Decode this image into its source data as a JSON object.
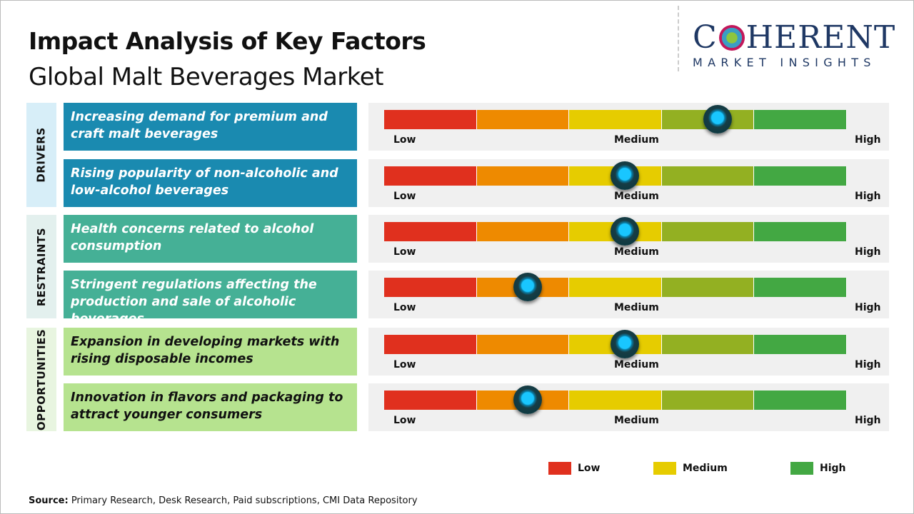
{
  "title": "Impact Analysis of Key Factors",
  "subtitle": "Global Malt Beverages Market",
  "logo": {
    "main": "COHERENT",
    "tagline": "MARKET INSIGHTS"
  },
  "chart_data": {
    "type": "gauge-table",
    "title": "Impact Analysis of Key Factors",
    "subtitle": "Global Malt Beverages Market",
    "scale_labels": {
      "low": "Low",
      "medium": "Medium",
      "high": "High"
    },
    "segment_colors": [
      "#e0301e",
      "#ee8a00",
      "#e6cc00",
      "#93b022",
      "#43a843"
    ],
    "categories": [
      {
        "name": "DRIVERS",
        "color": "#1a8ab0",
        "bg": "#d7eef8",
        "text_color": "#ffffff",
        "factors": [
          {
            "text": "Increasing demand for premium and craft malt beverages",
            "impact": 0.72
          },
          {
            "text": "Rising popularity of non-alcoholic and low-alcohol beverages",
            "impact": 0.52
          }
        ]
      },
      {
        "name": "RESTRAINTS",
        "color": "#45b096",
        "bg": "#e3f0ee",
        "text_color": "#ffffff",
        "factors": [
          {
            "text": "Health concerns related to alcohol consumption",
            "impact": 0.52
          },
          {
            "text": "Stringent regulations affecting the production and sale of alcoholic beverages",
            "impact": 0.31
          }
        ]
      },
      {
        "name": "OPPORTUNITIES",
        "color": "#b6e38f",
        "bg": "#e8f5e0",
        "text_color": "#111111",
        "factors": [
          {
            "text": "Expansion in developing markets with rising disposable incomes",
            "impact": 0.52
          },
          {
            "text": "Innovation in flavors and packaging to attract younger consumers",
            "impact": 0.31
          }
        ]
      }
    ],
    "legend": [
      {
        "label": "Low",
        "color": "#e0301e"
      },
      {
        "label": "Medium",
        "color": "#e6cc00"
      },
      {
        "label": "High",
        "color": "#43a843"
      }
    ],
    "legend_position": "bottom-right"
  },
  "source": {
    "label": "Source:",
    "text": " Primary Research, Desk Research, Paid subscriptions, CMI Data Repository"
  }
}
